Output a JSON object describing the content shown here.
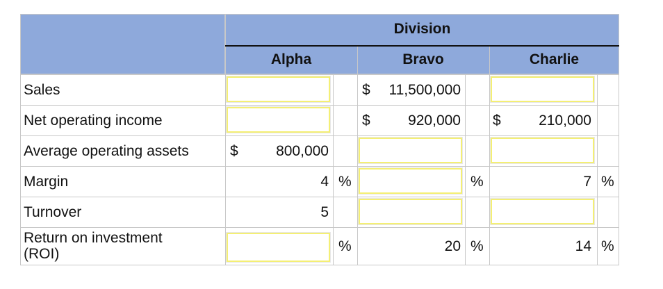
{
  "header": {
    "division": "Division",
    "columns": [
      "Alpha",
      "Bravo",
      "Charlie"
    ]
  },
  "rows": {
    "sales": {
      "label": "Sales",
      "bravo_cur": "$",
      "bravo_value": "11,500,000"
    },
    "noi": {
      "label": "Net operating income",
      "bravo_cur": "$",
      "bravo_value": "920,000",
      "charlie_cur": "$",
      "charlie_value": "210,000"
    },
    "assets": {
      "label": "Average operating assets",
      "alpha_cur": "$",
      "alpha_value": "800,000"
    },
    "margin": {
      "label": "Margin",
      "alpha_value": "4",
      "alpha_unit": "%",
      "bravo_unit": "%",
      "charlie_value": "7",
      "charlie_unit": "%"
    },
    "turnover": {
      "label": "Turnover",
      "alpha_value": "5"
    },
    "roi": {
      "label_line1": "Return on investment",
      "label_line2": "(ROI)",
      "alpha_unit": "%",
      "bravo_value": "20",
      "bravo_unit": "%",
      "charlie_value": "14",
      "charlie_unit": "%"
    }
  },
  "colors": {
    "header_bg": "#8ea9db",
    "input_border": "#f4ef74",
    "grid": "#c8c8c8"
  }
}
